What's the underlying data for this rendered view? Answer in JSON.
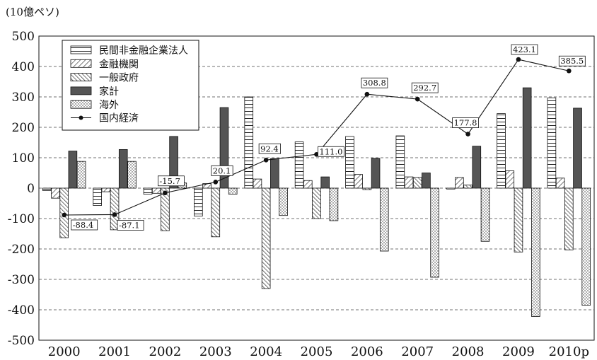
{
  "unit_label": "(10億ペソ)",
  "chart_data": {
    "type": "bar",
    "title": "",
    "xlabel": "",
    "ylabel": "(10億ペソ)",
    "categories": [
      "2000",
      "2001",
      "2002",
      "2003",
      "2004",
      "2005",
      "2006",
      "2007",
      "2008",
      "2009",
      "2010p"
    ],
    "ylim": [
      -500,
      500
    ],
    "yticks": [
      -500,
      -400,
      -300,
      -200,
      -100,
      0,
      100,
      200,
      300,
      400,
      500
    ],
    "grid": "horizontal-dashed",
    "legend_position": "top-left",
    "series": [
      {
        "name": "民間非金融企業法人",
        "pattern": "horizontal-lines",
        "values": [
          -8,
          -57,
          -20,
          -92,
          300,
          152,
          170,
          172,
          -3,
          245,
          297
        ]
      },
      {
        "name": "金融機関",
        "pattern": "forward-diagonal",
        "values": [
          -33,
          -12,
          -17,
          15,
          30,
          25,
          45,
          37,
          35,
          57,
          33
        ]
      },
      {
        "name": "一般政府",
        "pattern": "backward-diagonal",
        "values": [
          -163,
          -137,
          -140,
          -160,
          -330,
          -100,
          -5,
          35,
          10,
          -210,
          -203
        ]
      },
      {
        "name": "家計",
        "pattern": "solid",
        "color": "#555555",
        "values": [
          122,
          127,
          170,
          265,
          97,
          37,
          98,
          50,
          138,
          330,
          263
        ]
      },
      {
        "name": "海外",
        "pattern": "dots",
        "values": [
          88,
          88,
          17,
          -20,
          -90,
          -107,
          -207,
          -293,
          -175,
          -422,
          -385
        ]
      }
    ],
    "line_series": {
      "name": "国内経済",
      "values": [
        -88.4,
        -87.1,
        -15.7,
        20.1,
        92.4,
        111.0,
        308.8,
        292.7,
        177.8,
        423.1,
        385.5
      ],
      "labels": [
        "-88.4",
        "-87.1",
        "-15.7",
        "20.1",
        "92.4",
        "111.0",
        "308.8",
        "292.7",
        "177.8",
        "423.1",
        "385.5"
      ]
    }
  }
}
